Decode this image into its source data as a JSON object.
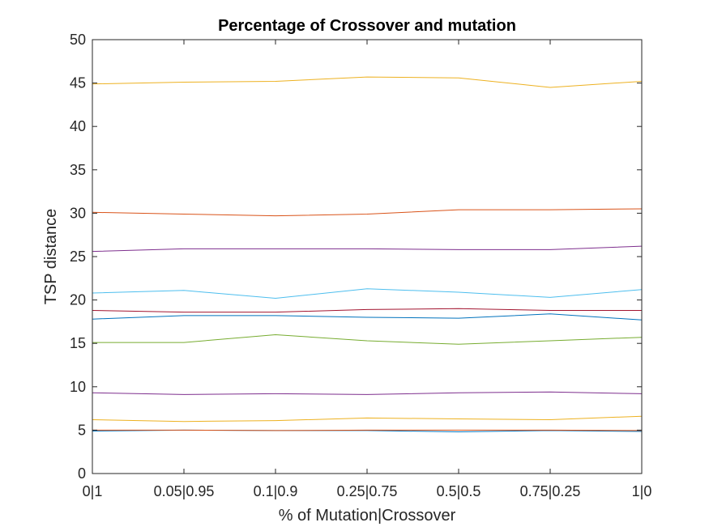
{
  "chart_data": {
    "type": "line",
    "title": "Percentage of Crossover and mutation",
    "xlabel": "% of Mutation|Crossover",
    "ylabel": "TSP distance",
    "categories": [
      "0|1",
      "0.05|0.95",
      "0.1|0.9",
      "0.25|0.75",
      "0.5|0.5",
      "0.75|0.25",
      "1|0"
    ],
    "ylim": [
      0,
      50
    ],
    "yticks": [
      "0",
      "5",
      "10",
      "15",
      "20",
      "25",
      "30",
      "35",
      "40",
      "45",
      "50"
    ],
    "grid": false,
    "legend": "none",
    "series": [
      {
        "color": "#0072BD",
        "values": [
          4.9,
          5.0,
          4.95,
          4.95,
          4.8,
          4.95,
          4.85
        ]
      },
      {
        "color": "#D95319",
        "values": [
          5.0,
          5.0,
          4.95,
          5.0,
          5.0,
          5.0,
          4.95
        ]
      },
      {
        "color": "#EDB120",
        "values": [
          6.2,
          6.0,
          6.1,
          6.4,
          6.3,
          6.2,
          6.6
        ]
      },
      {
        "color": "#7E2F8E",
        "values": [
          9.3,
          9.1,
          9.2,
          9.1,
          9.3,
          9.4,
          9.2
        ]
      },
      {
        "color": "#77AC30",
        "values": [
          15.1,
          15.1,
          16.0,
          15.3,
          14.9,
          15.3,
          15.7
        ]
      },
      {
        "color": "#0072BD",
        "values": [
          17.8,
          18.2,
          18.2,
          18.0,
          17.9,
          18.4,
          17.7
        ]
      },
      {
        "color": "#A2142F",
        "values": [
          18.8,
          18.6,
          18.6,
          18.9,
          19.0,
          18.8,
          18.8
        ]
      },
      {
        "color": "#4DBEEE",
        "values": [
          20.8,
          21.1,
          20.2,
          21.3,
          20.9,
          20.3,
          21.2
        ]
      },
      {
        "color": "#7E2F8E",
        "values": [
          25.6,
          25.9,
          25.9,
          25.9,
          25.8,
          25.8,
          26.2
        ]
      },
      {
        "color": "#D95319",
        "values": [
          30.1,
          29.9,
          29.7,
          29.9,
          30.4,
          30.4,
          30.5
        ]
      },
      {
        "color": "#EDB120",
        "values": [
          44.9,
          45.1,
          45.2,
          45.7,
          45.6,
          44.5,
          45.2
        ]
      }
    ]
  }
}
